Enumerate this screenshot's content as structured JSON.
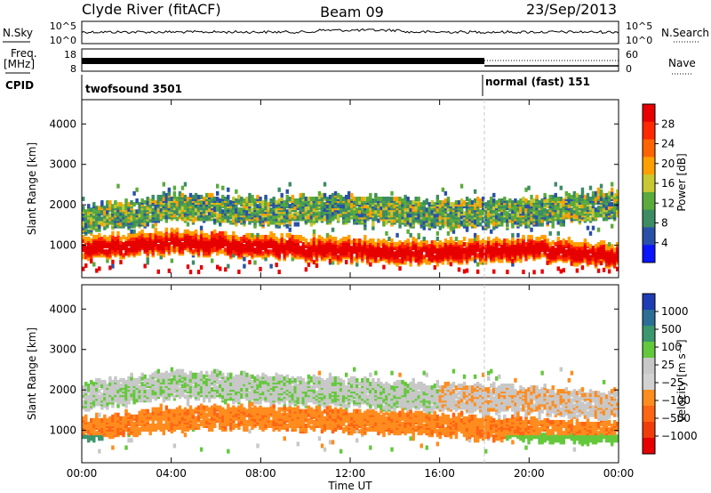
{
  "header": {
    "title_left": "Clyde River (fitACF)",
    "title_center": "Beam 09",
    "title_right": "23/Sep/2013"
  },
  "left_labels": {
    "nsky": "N.Sky",
    "freq": "Freq.",
    "freq_unit": "[MHz]",
    "cpid": "CPID"
  },
  "right_labels": {
    "nsearch": "N.Search",
    "nave": "Nave"
  },
  "noise_panel": {
    "left_ticks": [
      "10^5",
      "10^0"
    ],
    "right_ticks": [
      "10^5",
      "10^0"
    ]
  },
  "freq_panel": {
    "left_ticks": [
      "18",
      "8"
    ],
    "right_ticks": [
      "60",
      "0"
    ]
  },
  "cpid_panel": {
    "segments": [
      {
        "label": "twofsound 3501",
        "start_hour": 0,
        "end_hour": 18
      },
      {
        "label": "normal (fast) 151",
        "start_hour": 18,
        "end_hour": 24
      }
    ]
  },
  "colors": {
    "power_scale": [
      "#0a14ff",
      "#2850a8",
      "#3c8c64",
      "#5aaa3c",
      "#c8c832",
      "#ffa000",
      "#ff6400",
      "#ff2800",
      "#e60000"
    ],
    "velocity_scale": [
      "#1e3cb4",
      "#2d6e96",
      "#3c966e",
      "#64c83c",
      "#c8c8c8",
      "#d2d2d2",
      "#ff8c1e",
      "#ff6414",
      "#f03c0a",
      "#e60000"
    ]
  },
  "chart_data": [
    {
      "type": "heatmap",
      "quantity": "Power",
      "ylabel": "Slant Range [km]",
      "yticks": [
        1000,
        2000,
        3000,
        4000
      ],
      "ylim": [
        200,
        4600
      ],
      "xlim": [
        0,
        24
      ],
      "colorbar_label": "Power [dB]",
      "colorbar_ticks": [
        "4",
        "8",
        "12",
        "16",
        "20",
        "24",
        "28"
      ],
      "colorbar_range": [
        0,
        30
      ],
      "bands": [
        {
          "name": "lower-strong",
          "range_center_km": [
            900,
            1050,
            950,
            850,
            800,
            900,
            700
          ],
          "hours": [
            0,
            4,
            8,
            12,
            16,
            20,
            24
          ],
          "power_db": 28
        },
        {
          "name": "upper-mixed",
          "range_center_km": [
            1600,
            1900,
            1800,
            1900,
            1700,
            1800,
            2000
          ],
          "hours": [
            0,
            4,
            8,
            12,
            16,
            20,
            24
          ],
          "power_db": 12
        }
      ]
    },
    {
      "type": "heatmap",
      "quantity": "Velocity",
      "ylabel": "Slant Range [km]",
      "yticks": [
        1000,
        2000,
        3000,
        4000
      ],
      "ylim": [
        200,
        4600
      ],
      "xlim": [
        0,
        24
      ],
      "xlabel": "Time UT",
      "xtick_labels": [
        "00:00",
        "04:00",
        "08:00",
        "12:00",
        "16:00",
        "20:00",
        "00:00"
      ],
      "colorbar_label": "Velocity [m s⁻¹]",
      "colorbar_ticks": [
        "1000",
        "500",
        "100",
        "25",
        "−25",
        "−100",
        "−500",
        "−1000"
      ],
      "bands": [
        {
          "name": "orange-main",
          "range_center_km": [
            1000,
            1250,
            1300,
            1200,
            1100,
            1000,
            900
          ],
          "hours": [
            0,
            4,
            8,
            12,
            16,
            20,
            24
          ],
          "velocity_ms": -100
        },
        {
          "name": "grey-upper",
          "range_center_km": [
            1800,
            2100,
            2000,
            1900,
            1800,
            1700,
            1600
          ],
          "hours": [
            0,
            4,
            8,
            12,
            16,
            20,
            24
          ],
          "velocity_ms": 0
        }
      ]
    }
  ]
}
